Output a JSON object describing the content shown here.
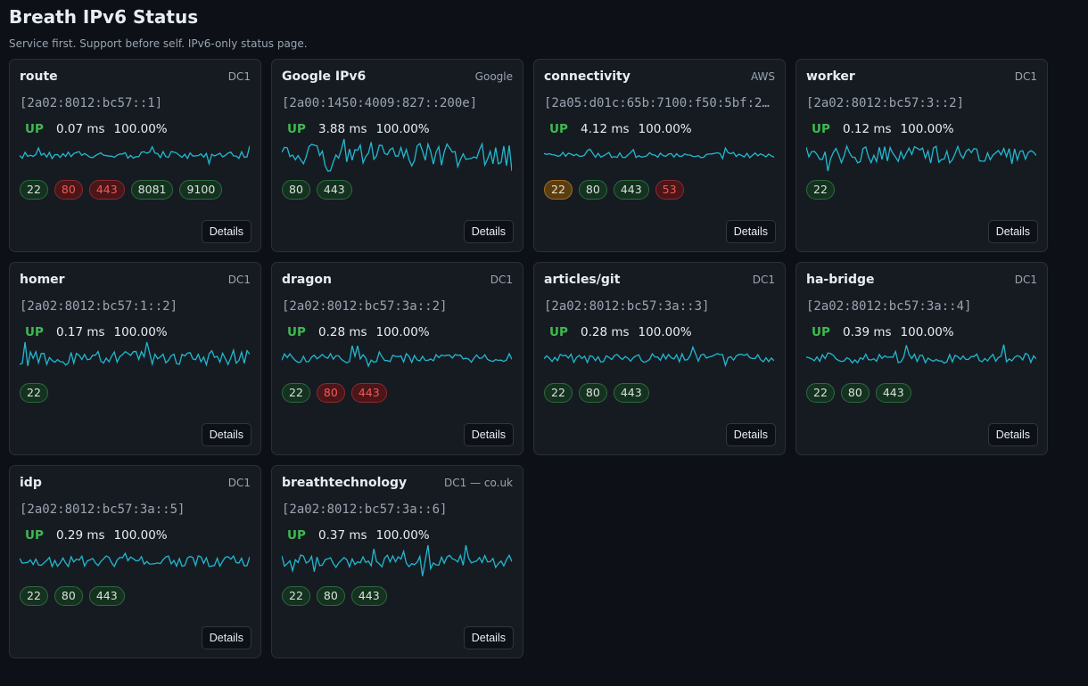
{
  "header": {
    "title": "Breath IPv6 Status",
    "subtitle": "Service first. Support before self. IPv6-only status page."
  },
  "colors": {
    "sparkline": "#22b8cf",
    "up": "#3fb950",
    "port_open_bg": "#15311f",
    "port_closed_text": "#f25a55",
    "port_warn_bg": "#5a3d12"
  },
  "details_label": "Details",
  "services": [
    {
      "name": "route",
      "location": "DC1",
      "ip": "[2a02:8012:bc57::1]",
      "status": "UP",
      "latency": "0.07 ms",
      "uptime": "100.00%",
      "ports": [
        {
          "label": "22",
          "state": "open"
        },
        {
          "label": "80",
          "state": "closed"
        },
        {
          "label": "443",
          "state": "closed"
        },
        {
          "label": "8081",
          "state": "open"
        },
        {
          "label": "9100",
          "state": "open"
        }
      ]
    },
    {
      "name": "Google IPv6",
      "location": "Google",
      "ip": "[2a00:1450:4009:827::200e]",
      "status": "UP",
      "latency": "3.88 ms",
      "uptime": "100.00%",
      "ports": [
        {
          "label": "80",
          "state": "open"
        },
        {
          "label": "443",
          "state": "open"
        }
      ]
    },
    {
      "name": "connectivity",
      "location": "AWS",
      "ip": "[2a05:d01c:65b:7100:f50:5bf:2…",
      "status": "UP",
      "latency": "4.12 ms",
      "uptime": "100.00%",
      "ports": [
        {
          "label": "22",
          "state": "warn"
        },
        {
          "label": "80",
          "state": "open"
        },
        {
          "label": "443",
          "state": "open"
        },
        {
          "label": "53",
          "state": "closed"
        }
      ]
    },
    {
      "name": "worker",
      "location": "DC1",
      "ip": "[2a02:8012:bc57:3::2]",
      "status": "UP",
      "latency": "0.12 ms",
      "uptime": "100.00%",
      "ports": [
        {
          "label": "22",
          "state": "open"
        }
      ]
    },
    {
      "name": "homer",
      "location": "DC1",
      "ip": "[2a02:8012:bc57:1::2]",
      "status": "UP",
      "latency": "0.17 ms",
      "uptime": "100.00%",
      "ports": [
        {
          "label": "22",
          "state": "open"
        }
      ]
    },
    {
      "name": "dragon",
      "location": "DC1",
      "ip": "[2a02:8012:bc57:3a::2]",
      "status": "UP",
      "latency": "0.28 ms",
      "uptime": "100.00%",
      "ports": [
        {
          "label": "22",
          "state": "open"
        },
        {
          "label": "80",
          "state": "closed"
        },
        {
          "label": "443",
          "state": "closed"
        }
      ]
    },
    {
      "name": "articles/git",
      "location": "DC1",
      "ip": "[2a02:8012:bc57:3a::3]",
      "status": "UP",
      "latency": "0.28 ms",
      "uptime": "100.00%",
      "ports": [
        {
          "label": "22",
          "state": "open"
        },
        {
          "label": "80",
          "state": "open"
        },
        {
          "label": "443",
          "state": "open"
        }
      ]
    },
    {
      "name": "ha-bridge",
      "location": "DC1",
      "ip": "[2a02:8012:bc57:3a::4]",
      "status": "UP",
      "latency": "0.39 ms",
      "uptime": "100.00%",
      "ports": [
        {
          "label": "22",
          "state": "open"
        },
        {
          "label": "80",
          "state": "open"
        },
        {
          "label": "443",
          "state": "open"
        }
      ]
    },
    {
      "name": "idp",
      "location": "DC1",
      "ip": "[2a02:8012:bc57:3a::5]",
      "status": "UP",
      "latency": "0.29 ms",
      "uptime": "100.00%",
      "ports": [
        {
          "label": "22",
          "state": "open"
        },
        {
          "label": "80",
          "state": "open"
        },
        {
          "label": "443",
          "state": "open"
        }
      ]
    },
    {
      "name": "breathtechnology",
      "location": "DC1 — co.uk",
      "ip": "[2a02:8012:bc57:3a::6]",
      "status": "UP",
      "latency": "0.37 ms",
      "uptime": "100.00%",
      "ports": [
        {
          "label": "22",
          "state": "open"
        },
        {
          "label": "80",
          "state": "open"
        },
        {
          "label": "443",
          "state": "open"
        }
      ]
    }
  ]
}
